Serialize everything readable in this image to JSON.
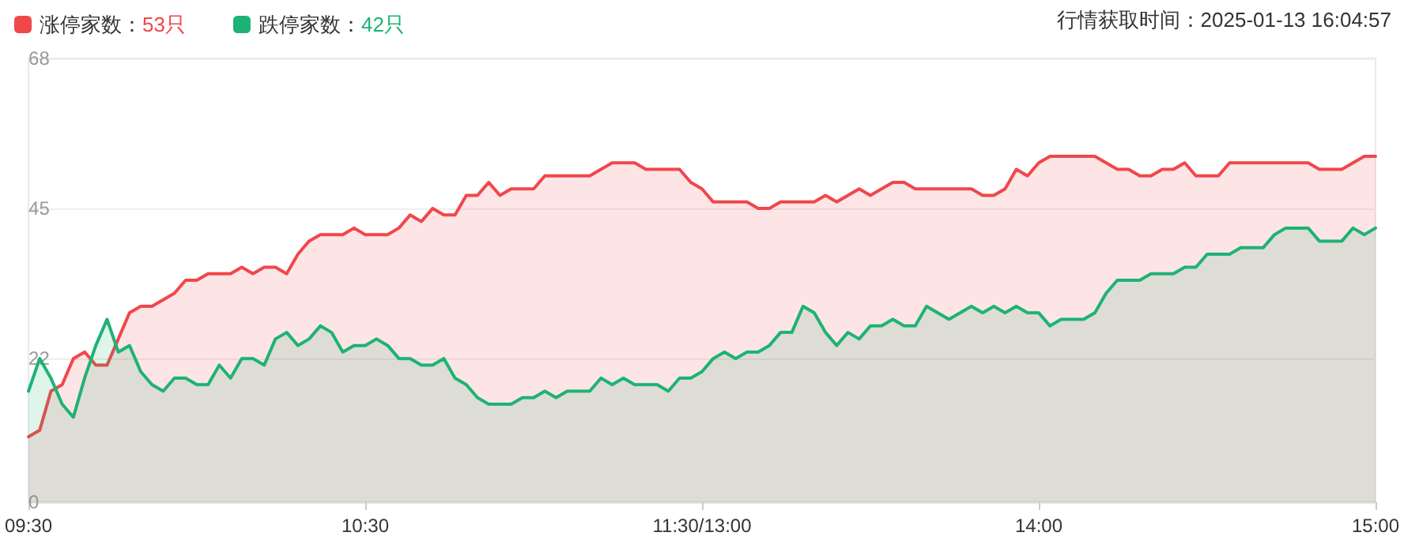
{
  "chart_data": {
    "type": "area",
    "categories": [
      "09:30",
      null,
      null,
      null,
      null,
      null,
      null,
      null,
      null,
      null,
      null,
      null,
      null,
      null,
      null,
      null,
      null,
      null,
      null,
      null,
      null,
      null,
      null,
      null,
      null,
      null,
      null,
      null,
      null,
      null,
      "10:30",
      null,
      null,
      null,
      null,
      null,
      null,
      null,
      null,
      null,
      null,
      null,
      null,
      null,
      null,
      null,
      null,
      null,
      null,
      null,
      null,
      null,
      null,
      null,
      null,
      null,
      null,
      null,
      null,
      null,
      "11:30/13:00",
      null,
      null,
      null,
      null,
      null,
      null,
      null,
      null,
      null,
      null,
      null,
      null,
      null,
      null,
      null,
      null,
      null,
      null,
      null,
      null,
      null,
      null,
      null,
      null,
      null,
      null,
      null,
      null,
      null,
      "14:00",
      null,
      null,
      null,
      null,
      null,
      null,
      null,
      null,
      null,
      null,
      null,
      null,
      null,
      null,
      null,
      null,
      null,
      null,
      null,
      null,
      null,
      null,
      null,
      null,
      null,
      null,
      null,
      null,
      null,
      "15:00"
    ],
    "ylim": [
      0,
      68
    ],
    "yticks": [
      0,
      22,
      45,
      68
    ],
    "grid": "y",
    "legend": "top left",
    "marker": "none",
    "line_style": "solid",
    "annotations": [
      "行情获取时间：2025-01-13 16:04:57"
    ],
    "series": [
      {
        "name": "涨停家数：53只",
        "color": "#f0474b",
        "values": [
          10,
          11,
          17,
          18,
          22,
          23,
          21,
          21,
          25,
          29,
          30,
          30,
          31,
          32,
          34,
          34,
          35,
          35,
          35,
          36,
          35,
          36,
          36,
          35,
          38,
          40,
          41,
          41,
          41,
          42,
          41,
          41,
          41,
          42,
          44,
          43,
          45,
          44,
          44,
          47,
          47,
          49,
          47,
          48,
          48,
          48,
          50,
          50,
          50,
          50,
          50,
          51,
          52,
          52,
          52,
          51,
          51,
          51,
          51,
          49,
          48,
          46,
          46,
          46,
          46,
          45,
          45,
          46,
          46,
          46,
          46,
          47,
          46,
          47,
          48,
          47,
          48,
          49,
          49,
          48,
          48,
          48,
          48,
          48,
          48,
          47,
          47,
          48,
          51,
          50,
          52,
          53,
          53,
          53,
          53,
          53,
          52,
          51,
          51,
          50,
          50,
          51,
          51,
          52,
          50,
          50,
          50,
          52,
          52,
          52,
          52,
          52,
          52,
          52,
          52,
          51,
          51,
          51,
          52,
          53,
          53
        ]
      },
      {
        "name": "跌停家数：42只",
        "color": "#1db374",
        "values": [
          17,
          22,
          19,
          15,
          13,
          19,
          24,
          28,
          23,
          24,
          20,
          18,
          17,
          19,
          19,
          18,
          18,
          21,
          19,
          22,
          22,
          21,
          25,
          26,
          24,
          25,
          27,
          26,
          23,
          24,
          24,
          25,
          24,
          22,
          22,
          21,
          21,
          22,
          19,
          18,
          16,
          15,
          15,
          15,
          16,
          16,
          17,
          16,
          17,
          17,
          17,
          19,
          18,
          19,
          18,
          18,
          18,
          17,
          19,
          19,
          20,
          22,
          23,
          22,
          23,
          23,
          24,
          26,
          26,
          30,
          29,
          26,
          24,
          26,
          25,
          27,
          27,
          28,
          27,
          27,
          30,
          29,
          28,
          29,
          30,
          29,
          30,
          29,
          30,
          29,
          29,
          27,
          28,
          28,
          28,
          29,
          32,
          34,
          34,
          34,
          35,
          35,
          35,
          36,
          36,
          38,
          38,
          38,
          39,
          39,
          39,
          41,
          42,
          42,
          42,
          40,
          40,
          40,
          42,
          41,
          42
        ]
      }
    ]
  }
}
